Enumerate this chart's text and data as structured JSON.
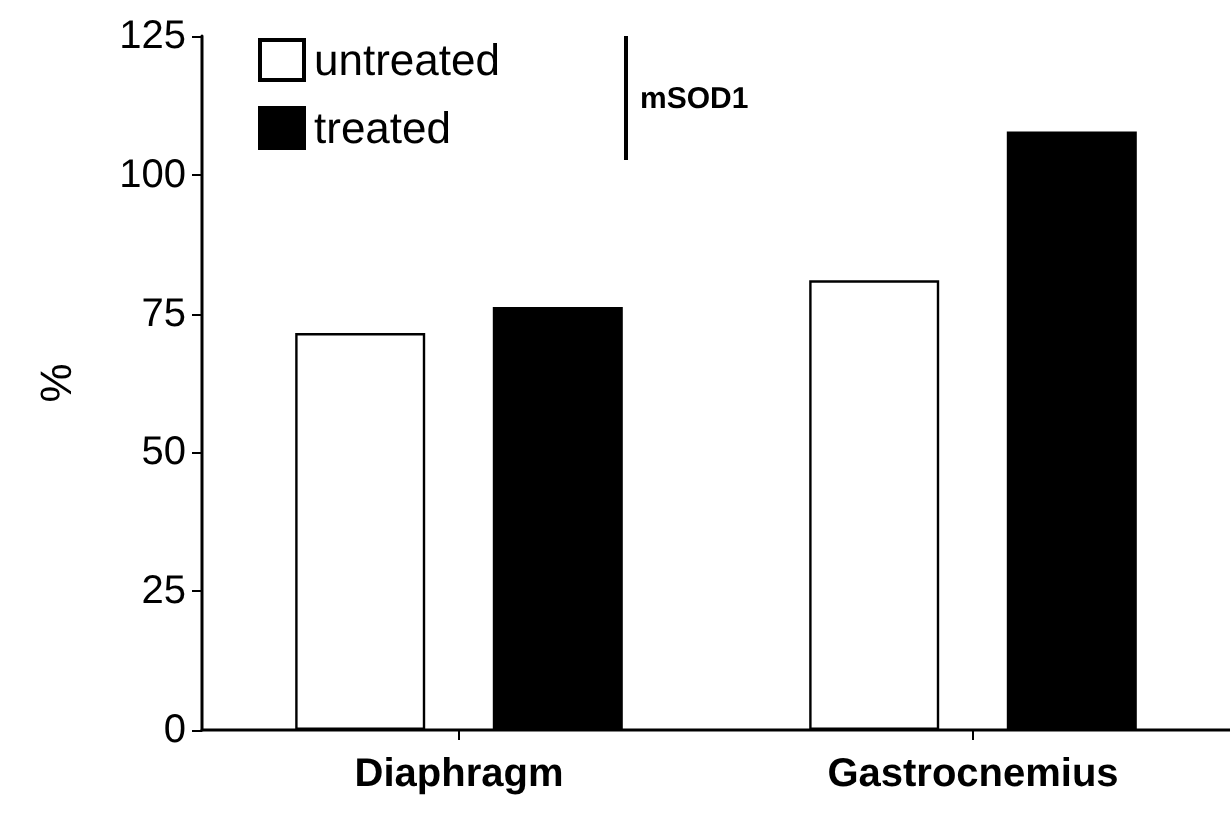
{
  "chart_data": {
    "type": "bar",
    "categories": [
      "Diaphragm",
      "Gastrocnemius"
    ],
    "ylabel": "%",
    "legend_title": "mSOD1",
    "series": [
      {
        "name": "untreated",
        "color": "#ffffff",
        "values": [
          71.5,
          81
        ]
      },
      {
        "name": "treated",
        "color": "#000000",
        "values": [
          76.2,
          107.8
        ]
      }
    ],
    "ylim": [
      0,
      125
    ],
    "yticks": [
      0,
      25,
      50,
      75,
      100,
      125
    ],
    "grid": false,
    "legend": "top left"
  }
}
